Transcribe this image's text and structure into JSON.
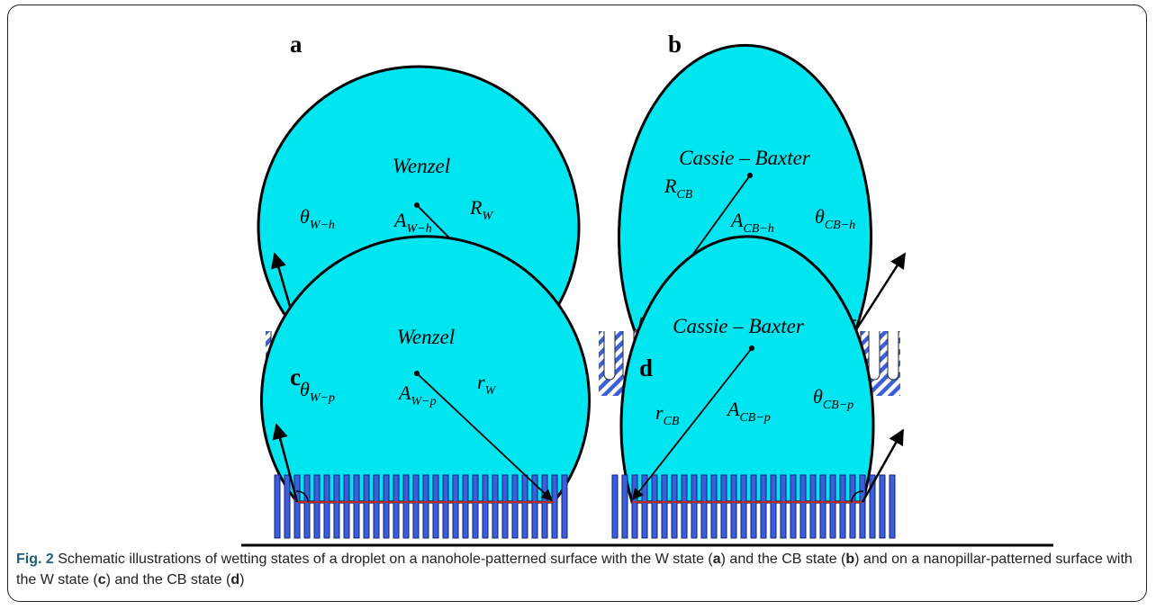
{
  "panels": [
    {
      "letter": "a",
      "state": "Wenzel",
      "angle": {
        "symbol": "θ",
        "subscript": "W−h"
      },
      "area": {
        "symbol": "A",
        "subscript": "W−h"
      },
      "radius": {
        "symbol": "R",
        "subscript": "W"
      }
    },
    {
      "letter": "b",
      "state": "Cassie – Baxter",
      "angle": {
        "symbol": "θ",
        "subscript": "CB−h"
      },
      "area": {
        "symbol": "A",
        "subscript": "CB−h"
      },
      "radius": {
        "symbol": "R",
        "subscript": "CB"
      }
    },
    {
      "letter": "c",
      "state": "Wenzel",
      "angle": {
        "symbol": "θ",
        "subscript": "W−p"
      },
      "area": {
        "symbol": "A",
        "subscript": "W−p"
      },
      "radius": {
        "symbol": "r",
        "subscript": "W"
      }
    },
    {
      "letter": "d",
      "state": "Cassie – Baxter",
      "angle": {
        "symbol": "θ",
        "subscript": "CB−p"
      },
      "area": {
        "symbol": "A",
        "subscript": "CB−p"
      },
      "radius": {
        "symbol": "r",
        "subscript": "CB"
      }
    }
  ],
  "caption": {
    "label": "Fig. 2",
    "parts": [
      "Schematic illustrations of wetting states of a droplet on a nanohole-patterned surface with the W state (",
      ") and the CB state (",
      ") and on a nanopillar-patterned surface with the W state (",
      ") and the CB state (",
      ")"
    ]
  }
}
